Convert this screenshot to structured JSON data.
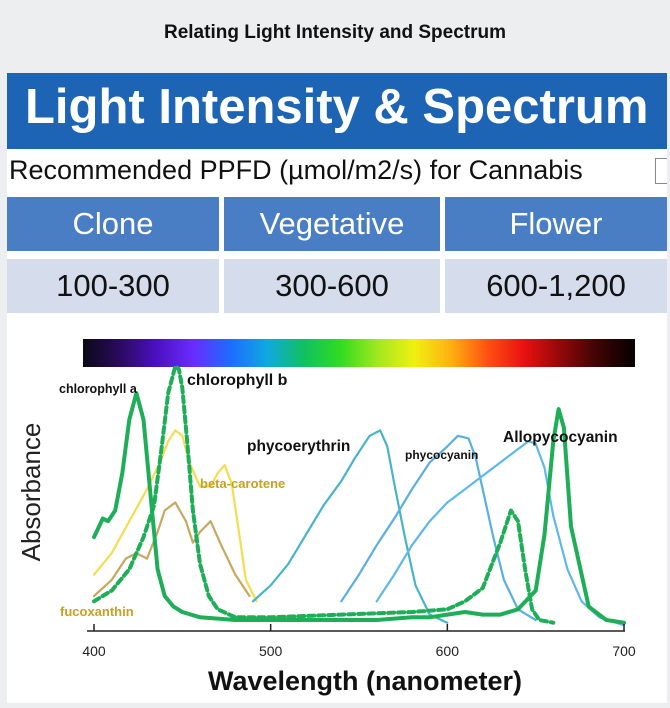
{
  "page_title": "Relating Light Intensity and Spectrum",
  "banner_title": "Light Intensity & Spectrum",
  "subtitle": "Recommended PPFD (µmol/m2/s) for Cannabis",
  "ppfd_table": {
    "headers": [
      "Clone",
      "Vegetative",
      "Flower"
    ],
    "values": [
      "100-300",
      "300-600",
      "600-1,200"
    ]
  },
  "chart_data": {
    "type": "line",
    "xlabel": "Wavelength (nanometer)",
    "ylabel": "Absorbance",
    "xlim": [
      400,
      700
    ],
    "ylim": [
      0,
      1
    ],
    "x_ticks": [
      400,
      500,
      600,
      700
    ],
    "grid": false,
    "legend": "none",
    "spectrum_bar": [
      "#0a0a14",
      "#2a0a60",
      "#4b10c0",
      "#6a2cff",
      "#1c6cff",
      "#10a8e0",
      "#10c060",
      "#30dc20",
      "#a0e820",
      "#f0f010",
      "#ffb010",
      "#ff5010",
      "#e81010",
      "#900808",
      "#3c0404",
      "#050000"
    ],
    "series": [
      {
        "name": "chlorophyll a",
        "color": "#1fae58",
        "dash": "solid",
        "label_position": "left",
        "x": [
          400,
          405,
          408,
          412,
          416,
          420,
          424,
          428,
          432,
          436,
          440,
          445,
          450,
          460,
          480,
          500,
          520,
          540,
          560,
          580,
          590,
          600,
          610,
          620,
          630,
          640,
          650,
          655,
          660,
          663,
          666,
          670,
          680,
          690,
          700
        ],
        "y": [
          0.34,
          0.41,
          0.4,
          0.44,
          0.58,
          0.78,
          0.88,
          0.78,
          0.5,
          0.22,
          0.12,
          0.08,
          0.06,
          0.04,
          0.03,
          0.03,
          0.03,
          0.03,
          0.03,
          0.04,
          0.04,
          0.05,
          0.06,
          0.05,
          0.05,
          0.07,
          0.14,
          0.35,
          0.7,
          0.82,
          0.75,
          0.38,
          0.08,
          0.03,
          0.02
        ]
      },
      {
        "name": "chlorophyll b",
        "color": "#1fae58",
        "dash": "dashed",
        "label_position": "top",
        "x": [
          400,
          410,
          420,
          428,
          434,
          438,
          442,
          446,
          448,
          450,
          453,
          456,
          460,
          465,
          470,
          480,
          500,
          540,
          580,
          600,
          610,
          620,
          630,
          636,
          640,
          644,
          648,
          652,
          660
        ],
        "y": [
          0.1,
          0.14,
          0.22,
          0.34,
          0.46,
          0.66,
          0.88,
          0.98,
          0.97,
          0.9,
          0.68,
          0.44,
          0.24,
          0.12,
          0.07,
          0.04,
          0.04,
          0.05,
          0.06,
          0.07,
          0.1,
          0.15,
          0.32,
          0.44,
          0.4,
          0.22,
          0.07,
          0.03,
          0.02
        ]
      },
      {
        "name": "beta-carotene",
        "color": "#f5dc50",
        "dash": "solid",
        "label_position": "right",
        "x": [
          400,
          410,
          420,
          430,
          438,
          442,
          446,
          450,
          454,
          460,
          466,
          470,
          474,
          478,
          482,
          486,
          492
        ],
        "y": [
          0.2,
          0.28,
          0.4,
          0.52,
          0.63,
          0.7,
          0.74,
          0.72,
          0.62,
          0.53,
          0.53,
          0.58,
          0.61,
          0.54,
          0.36,
          0.18,
          0.1
        ]
      },
      {
        "name": "fucoxanthin",
        "color": "#c8a860",
        "dash": "solid",
        "label_position": "bottom-left",
        "x": [
          400,
          410,
          418,
          424,
          430,
          436,
          440,
          446,
          452,
          456,
          460,
          466,
          472,
          480,
          488
        ],
        "y": [
          0.12,
          0.18,
          0.26,
          0.28,
          0.26,
          0.36,
          0.44,
          0.47,
          0.4,
          0.32,
          0.36,
          0.4,
          0.31,
          0.2,
          0.12
        ]
      },
      {
        "name": "phycoerythrin",
        "color": "#48b4c8",
        "dash": "solid",
        "label_position": "top",
        "x": [
          490,
          500,
          510,
          520,
          530,
          540,
          548,
          556,
          562,
          566,
          570,
          576,
          582,
          590,
          600
        ],
        "y": [
          0.1,
          0.16,
          0.24,
          0.35,
          0.46,
          0.55,
          0.64,
          0.72,
          0.74,
          0.68,
          0.54,
          0.34,
          0.16,
          0.05,
          0.02
        ]
      },
      {
        "name": "phycocyanin",
        "color": "#5aaee0",
        "dash": "solid",
        "label_position": "top",
        "x": [
          540,
          550,
          560,
          570,
          580,
          590,
          600,
          606,
          612,
          616,
          620,
          626,
          632,
          640,
          650
        ],
        "y": [
          0.1,
          0.2,
          0.31,
          0.41,
          0.52,
          0.62,
          0.68,
          0.72,
          0.71,
          0.64,
          0.52,
          0.34,
          0.18,
          0.07,
          0.03
        ]
      },
      {
        "name": "Allopycocyanin",
        "color": "#60b8e8",
        "dash": "solid",
        "label_position": "top",
        "x": [
          560,
          570,
          580,
          590,
          600,
          610,
          620,
          630,
          640,
          646,
          650,
          655,
          660,
          668,
          676,
          686,
          700
        ],
        "y": [
          0.1,
          0.2,
          0.31,
          0.4,
          0.47,
          0.52,
          0.57,
          0.62,
          0.67,
          0.7,
          0.69,
          0.6,
          0.42,
          0.22,
          0.1,
          0.04,
          0.01
        ]
      }
    ]
  }
}
